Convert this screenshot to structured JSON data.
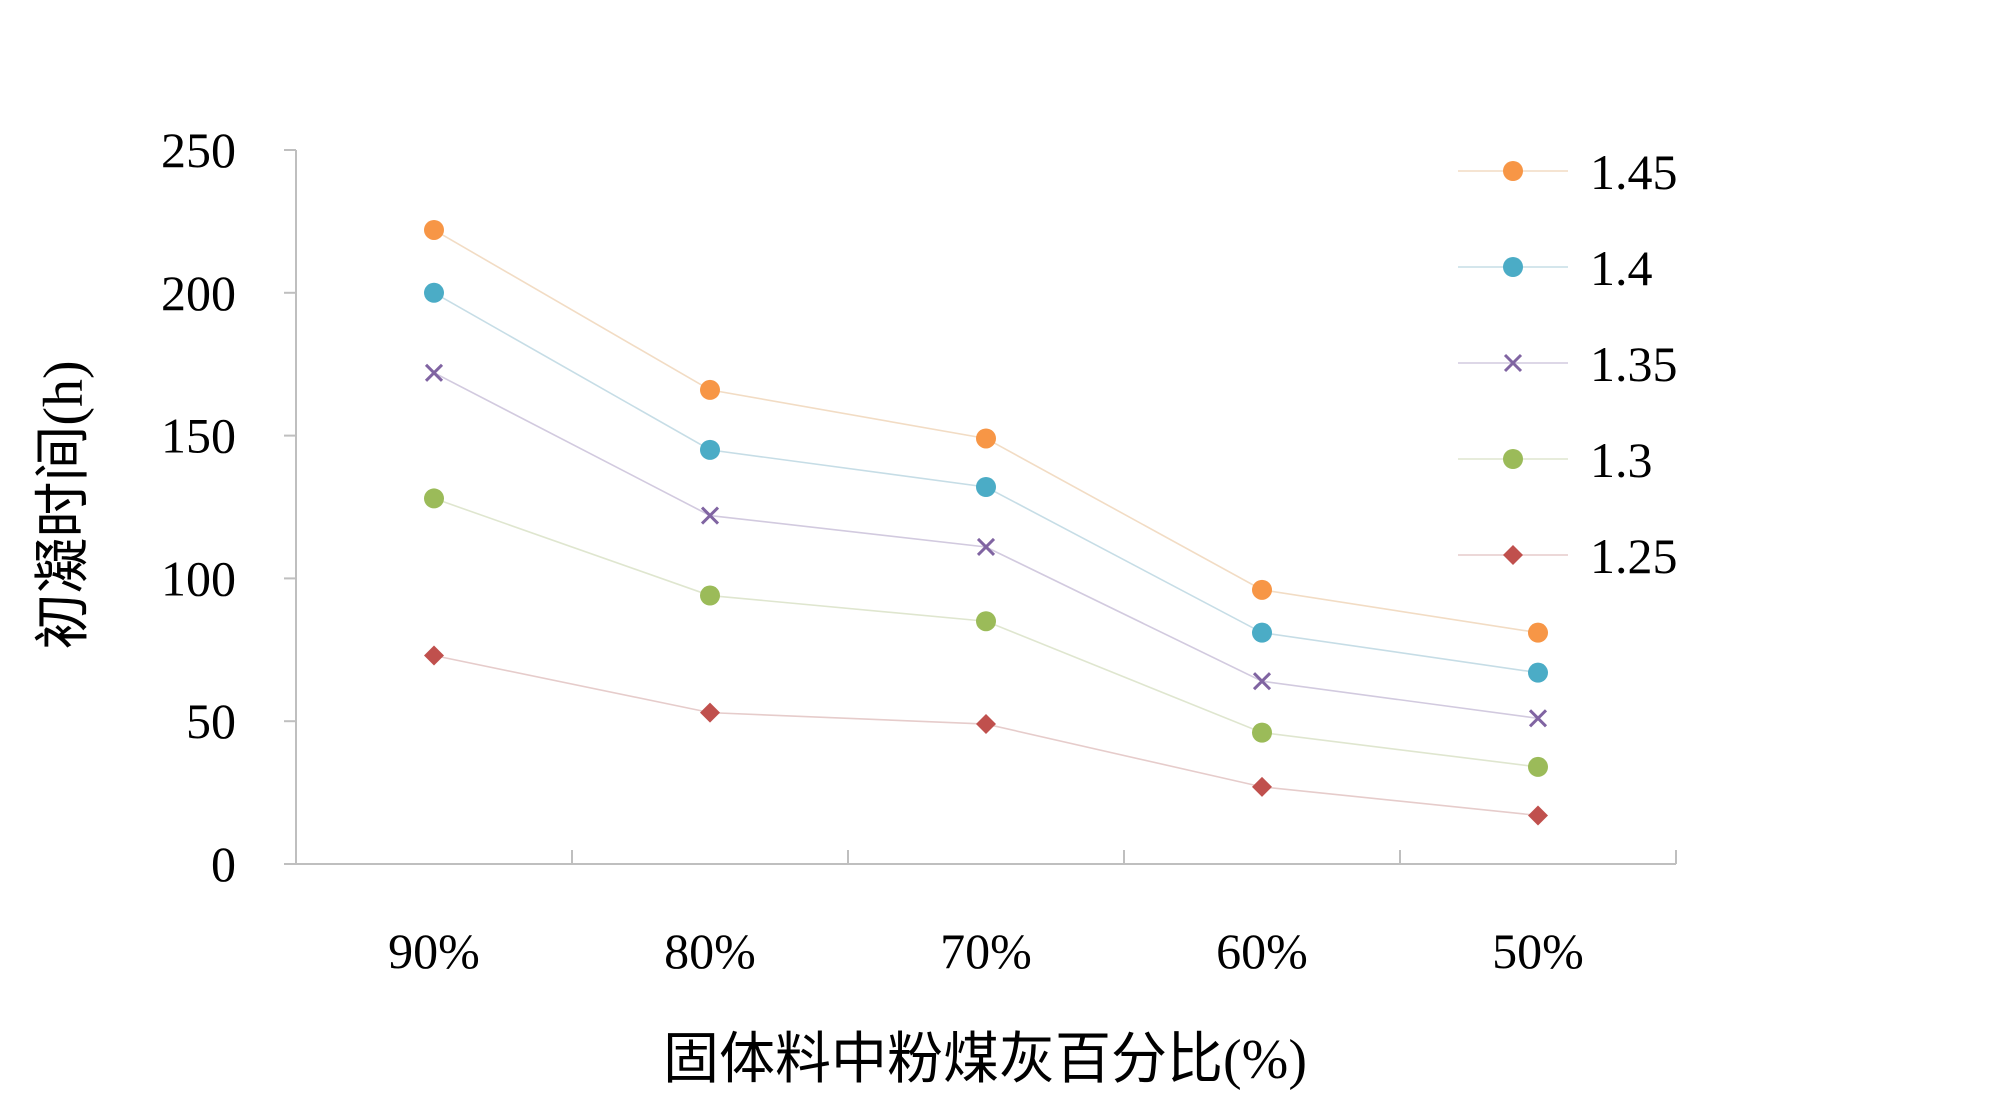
{
  "chart_data": {
    "type": "line",
    "title": "",
    "xlabel": "固体料中粉煤灰百分比(%)",
    "ylabel": "初凝时间(h)",
    "categories": [
      "90%",
      "80%",
      "70%",
      "60%",
      "50%"
    ],
    "ylim": [
      0,
      250
    ],
    "yticks": [
      0,
      50,
      100,
      150,
      200,
      250
    ],
    "grid": false,
    "legend_position": "right",
    "series": [
      {
        "name": "1.45",
        "marker": "circle",
        "color": "#f79646",
        "line_color": "#f2dcc4",
        "values": [
          222,
          166,
          149,
          96,
          81
        ]
      },
      {
        "name": "1.4",
        "marker": "circle",
        "color": "#4bacc6",
        "line_color": "#c6dde6",
        "values": [
          200,
          145,
          132,
          81,
          67
        ]
      },
      {
        "name": "1.35",
        "marker": "cross",
        "color": "#8064a2",
        "line_color": "#d2cadf",
        "values": [
          172,
          122,
          111,
          64,
          51
        ]
      },
      {
        "name": "1.3",
        "marker": "circle",
        "color": "#9bbb59",
        "line_color": "#dfe6cf",
        "values": [
          128,
          94,
          85,
          46,
          34
        ]
      },
      {
        "name": "1.25",
        "marker": "diamond",
        "color": "#c0504d",
        "line_color": "#e6cccb",
        "values": [
          73,
          53,
          49,
          27,
          17
        ]
      }
    ]
  }
}
